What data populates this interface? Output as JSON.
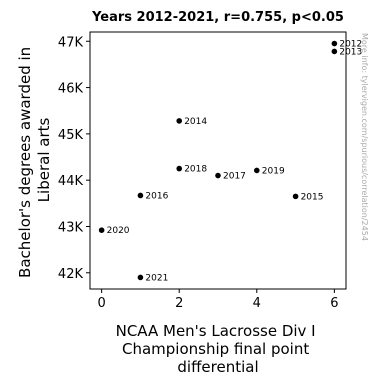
{
  "chart_data": {
    "type": "scatter",
    "title": "Years 2012-2021, r=0.755, p<0.05",
    "xlabel": [
      "NCAA Men's Lacrosse Div I",
      "Championship final point",
      "differential"
    ],
    "ylabel": [
      "Bachelor's degrees awarded in",
      "Liberal arts"
    ],
    "xlim": [
      -0.3,
      6.3
    ],
    "ylim": [
      41650,
      47200
    ],
    "xticks": [
      0,
      2,
      4,
      6
    ],
    "xtick_labels": [
      "0",
      "2",
      "4",
      "6"
    ],
    "yticks": [
      42000,
      43000,
      44000,
      45000,
      46000,
      47000
    ],
    "ytick_labels": [
      "42K",
      "43K",
      "44K",
      "45K",
      "46K",
      "47K"
    ],
    "grid": false,
    "point_color": "#000000",
    "points": [
      {
        "label": "2012",
        "x": 6,
        "y": 46950
      },
      {
        "label": "2013",
        "x": 6,
        "y": 46780
      },
      {
        "label": "2014",
        "x": 2,
        "y": 45280
      },
      {
        "label": "2015",
        "x": 5,
        "y": 43650
      },
      {
        "label": "2016",
        "x": 1,
        "y": 43670
      },
      {
        "label": "2017",
        "x": 3,
        "y": 44100
      },
      {
        "label": "2018",
        "x": 2,
        "y": 44250
      },
      {
        "label": "2019",
        "x": 4,
        "y": 44210
      },
      {
        "label": "2020",
        "x": 0,
        "y": 42920
      },
      {
        "label": "2021",
        "x": 1,
        "y": 41900
      }
    ]
  },
  "watermark": "More info: tylervigen.com/spurious/correlation/2454"
}
